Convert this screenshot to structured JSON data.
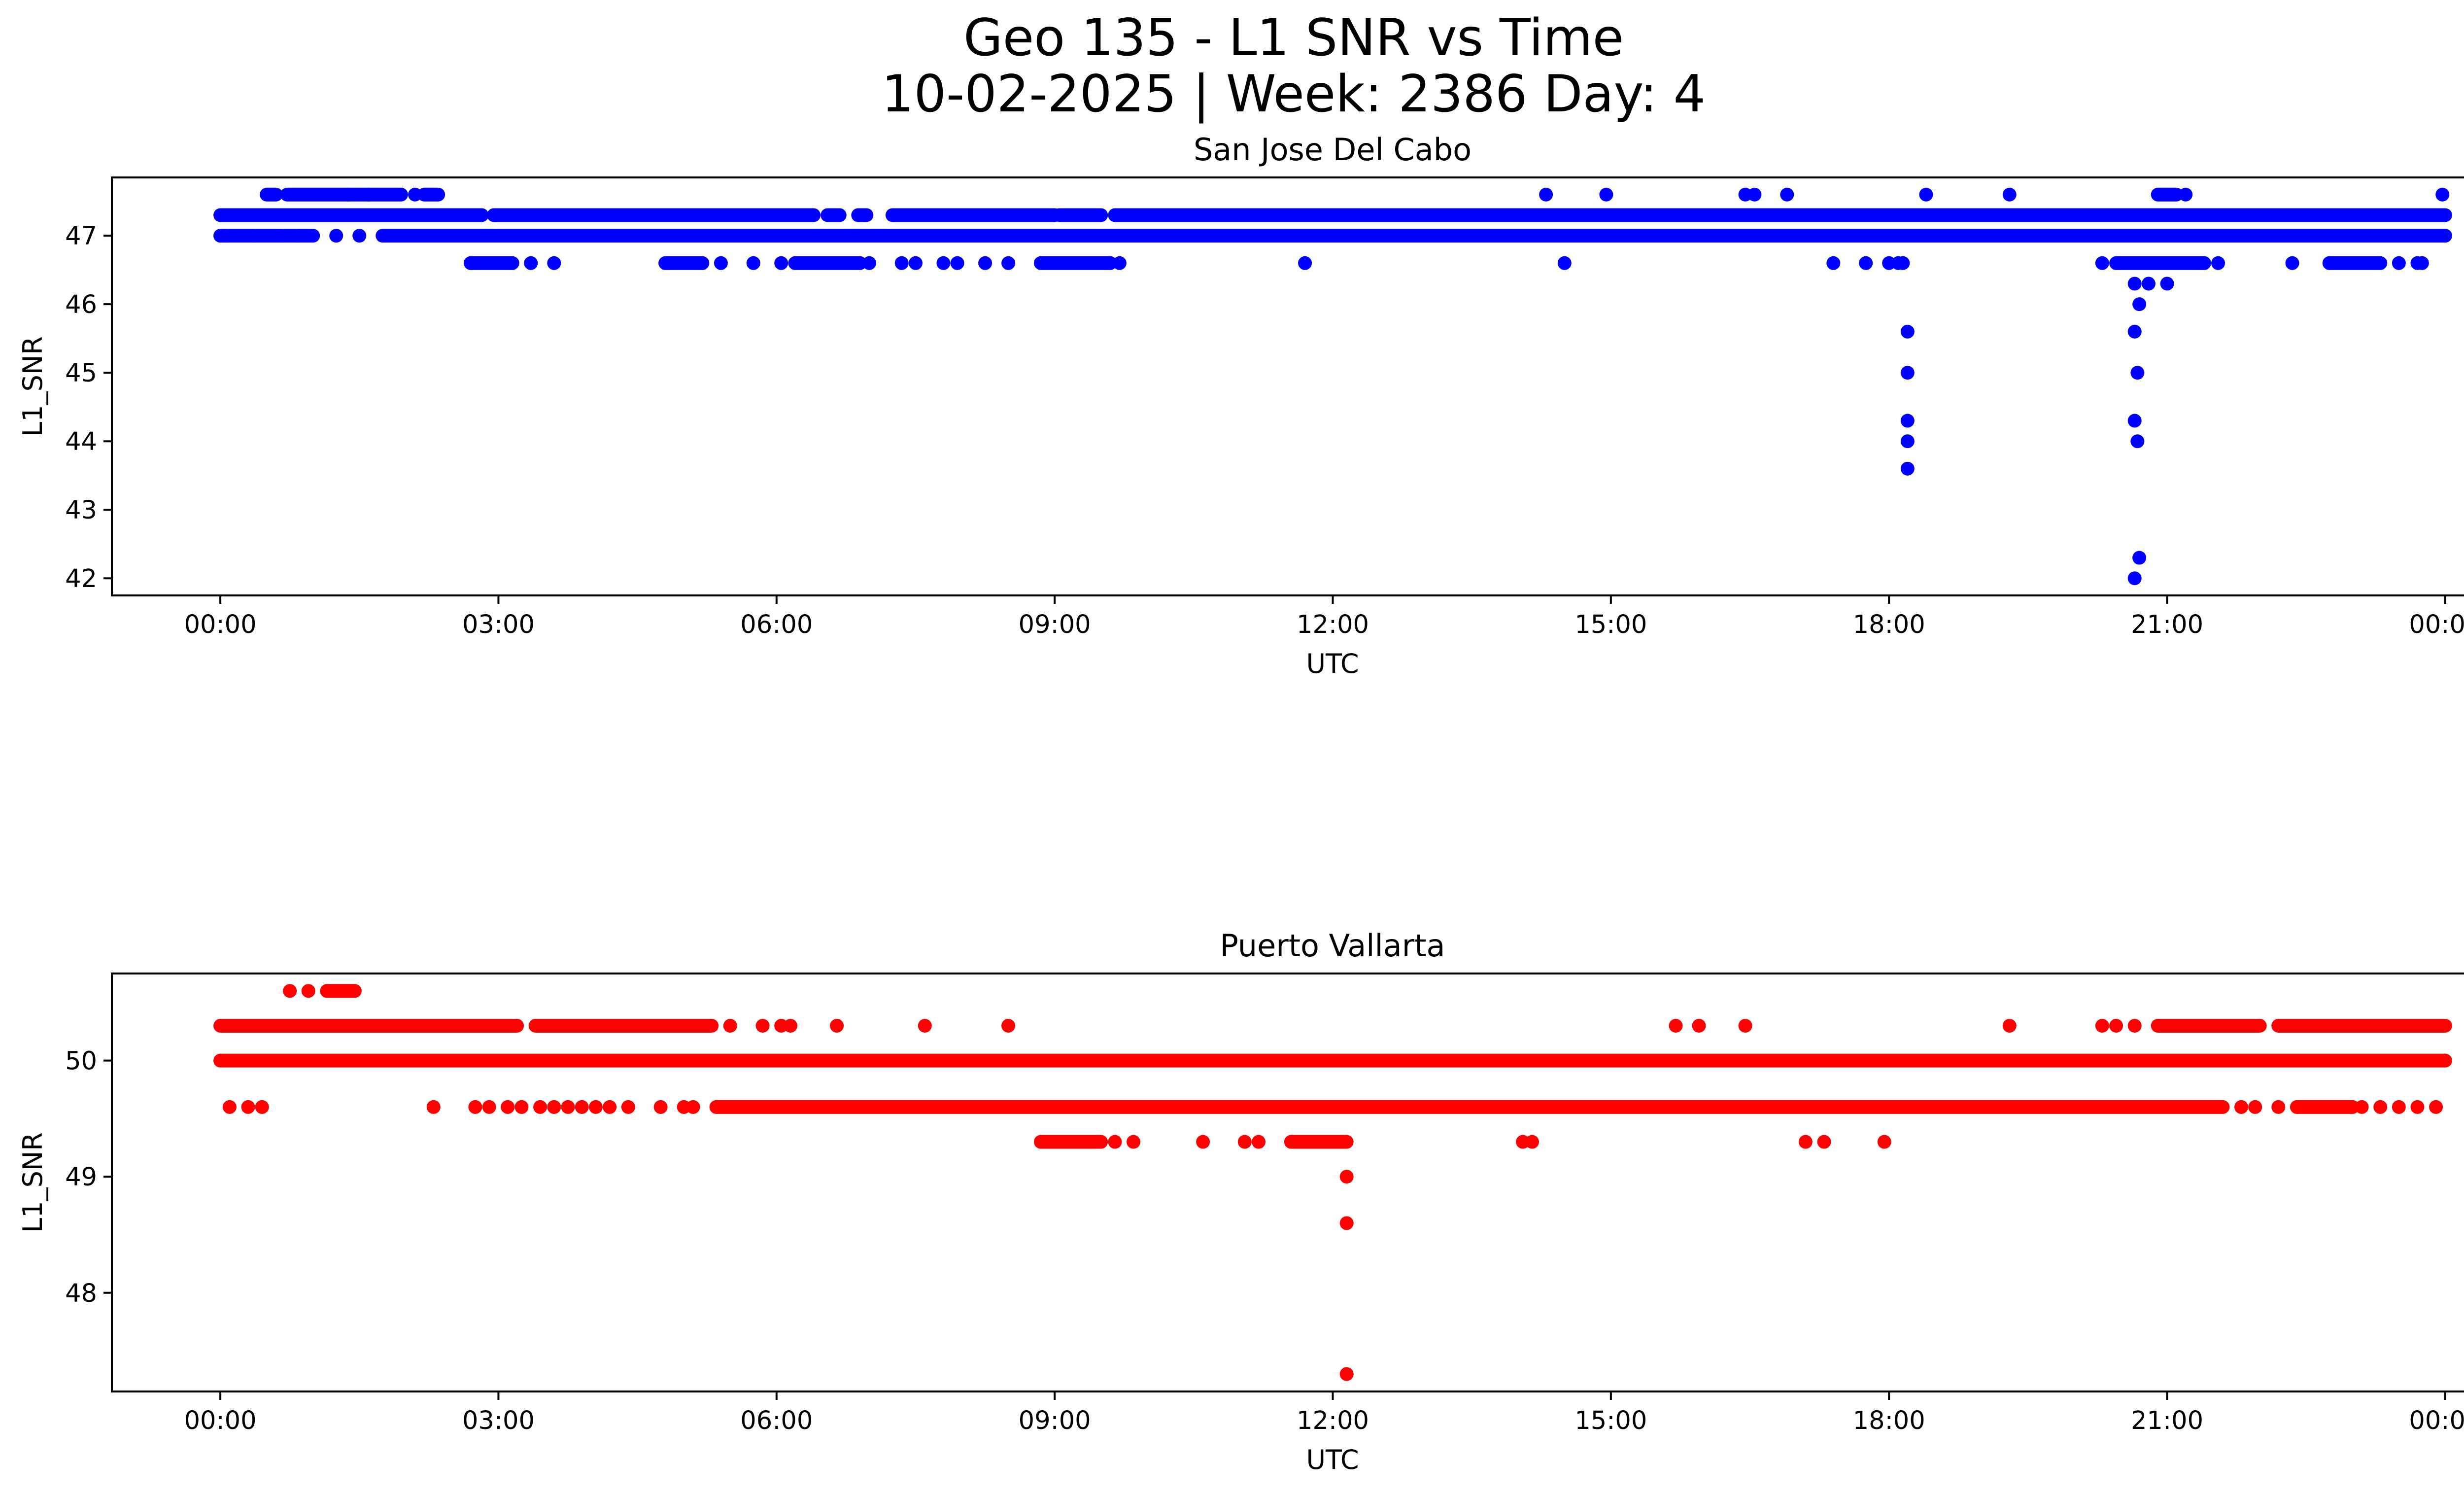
{
  "figure": {
    "title_line1": "Geo 135 - L1 SNR vs Time",
    "title_line2": "10-02-2025 | Week: 2386 Day: 4"
  },
  "chart_data": [
    {
      "type": "scatter",
      "title": "San Jose Del Cabo",
      "xlabel": "UTC",
      "ylabel": "L1_SNR",
      "color": "#0000ff",
      "xlim_hours": [
        -1.17,
        25.17
      ],
      "ylim": [
        41.75,
        47.85
      ],
      "xticks": [
        {
          "value": 0,
          "label": "00:00"
        },
        {
          "value": 3,
          "label": "03:00"
        },
        {
          "value": 6,
          "label": "06:00"
        },
        {
          "value": 9,
          "label": "09:00"
        },
        {
          "value": 12,
          "label": "12:00"
        },
        {
          "value": 15,
          "label": "15:00"
        },
        {
          "value": 18,
          "label": "18:00"
        },
        {
          "value": 21,
          "label": "21:00"
        },
        {
          "value": 24,
          "label": "00:00"
        }
      ],
      "yticks": [
        {
          "value": 42,
          "label": "42"
        },
        {
          "value": 43,
          "label": "43"
        },
        {
          "value": 44,
          "label": "44"
        },
        {
          "value": 45,
          "label": "45"
        },
        {
          "value": 46,
          "label": "46"
        },
        {
          "value": 47,
          "label": "47"
        }
      ],
      "runs": [
        {
          "y": 47.3,
          "segments": [
            [
              0,
              2.82
            ],
            [
              2.95,
              6.4
            ],
            [
              6.55,
              6.68
            ],
            [
              6.88,
              6.97
            ],
            [
              7.25,
              9.0
            ],
            [
              9.05,
              9.5
            ],
            [
              9.65,
              24.0
            ]
          ]
        },
        {
          "y": 47.0,
          "segments": [
            [
              0,
              1.0
            ],
            [
              1.75,
              24.0
            ]
          ]
        },
        {
          "y": 47.6,
          "segments": [
            [
              0.5,
              0.6
            ],
            [
              0.72,
              1.95
            ],
            [
              2.2,
              2.35
            ],
            [
              20.9,
              21.1
            ]
          ]
        },
        {
          "y": 46.6,
          "segments": [
            [
              2.7,
              3.15
            ],
            [
              4.8,
              5.2
            ],
            [
              6.2,
              6.9
            ],
            [
              8.85,
              9.6
            ],
            [
              20.45,
              21.4
            ],
            [
              22.75,
              23.3
            ]
          ]
        }
      ],
      "points": [
        [
          0.05,
          47.0
        ],
        [
          0.35,
          47.0
        ],
        [
          0.65,
          47.0
        ],
        [
          0.85,
          47.0
        ],
        [
          1.25,
          47.0
        ],
        [
          1.5,
          47.0
        ],
        [
          1.38,
          47.6
        ],
        [
          1.6,
          47.6
        ],
        [
          2.1,
          47.6
        ],
        [
          14.3,
          47.6
        ],
        [
          14.95,
          47.6
        ],
        [
          16.45,
          47.6
        ],
        [
          16.55,
          47.6
        ],
        [
          16.9,
          47.6
        ],
        [
          18.4,
          47.6
        ],
        [
          19.3,
          47.6
        ],
        [
          21.2,
          47.6
        ],
        [
          23.97,
          47.6
        ],
        [
          3.35,
          46.6
        ],
        [
          3.6,
          46.6
        ],
        [
          5.4,
          46.6
        ],
        [
          5.75,
          46.6
        ],
        [
          6.05,
          46.6
        ],
        [
          7.0,
          46.6
        ],
        [
          7.35,
          46.6
        ],
        [
          7.5,
          46.6
        ],
        [
          7.8,
          46.6
        ],
        [
          7.95,
          46.6
        ],
        [
          8.25,
          46.6
        ],
        [
          8.5,
          46.6
        ],
        [
          9.7,
          46.6
        ],
        [
          11.7,
          46.6
        ],
        [
          14.5,
          46.6
        ],
        [
          17.4,
          46.6
        ],
        [
          17.75,
          46.6
        ],
        [
          18.0,
          46.6
        ],
        [
          18.1,
          46.6
        ],
        [
          18.15,
          46.6
        ],
        [
          20.3,
          46.6
        ],
        [
          21.55,
          46.6
        ],
        [
          22.35,
          46.6
        ],
        [
          23.5,
          46.6
        ],
        [
          23.7,
          46.6
        ],
        [
          23.75,
          46.6
        ],
        [
          18.2,
          45.6
        ],
        [
          18.2,
          45.0
        ],
        [
          18.2,
          44.3
        ],
        [
          18.2,
          44.0
        ],
        [
          18.2,
          43.6
        ],
        [
          20.65,
          46.3
        ],
        [
          20.8,
          46.3
        ],
        [
          21.0,
          46.3
        ],
        [
          20.7,
          46.0
        ],
        [
          20.65,
          45.6
        ],
        [
          20.68,
          45.0
        ],
        [
          20.65,
          44.3
        ],
        [
          20.68,
          44.0
        ],
        [
          20.7,
          42.3
        ],
        [
          20.65,
          42.0
        ]
      ]
    },
    {
      "type": "scatter",
      "title": "Puerto Vallarta",
      "xlabel": "UTC",
      "ylabel": "L1_SNR",
      "color": "#ff0000",
      "xlim_hours": [
        -1.17,
        25.17
      ],
      "ylim": [
        47.15,
        50.75
      ],
      "xticks": [
        {
          "value": 0,
          "label": "00:00"
        },
        {
          "value": 3,
          "label": "03:00"
        },
        {
          "value": 6,
          "label": "06:00"
        },
        {
          "value": 9,
          "label": "09:00"
        },
        {
          "value": 12,
          "label": "12:00"
        },
        {
          "value": 15,
          "label": "15:00"
        },
        {
          "value": 18,
          "label": "18:00"
        },
        {
          "value": 21,
          "label": "21:00"
        },
        {
          "value": 24,
          "label": "00:00"
        }
      ],
      "yticks": [
        {
          "value": 48,
          "label": "48"
        },
        {
          "value": 49,
          "label": "49"
        },
        {
          "value": 50,
          "label": "50"
        }
      ],
      "runs": [
        {
          "y": 50.0,
          "segments": [
            [
              0,
              24.0
            ]
          ]
        },
        {
          "y": 50.3,
          "segments": [
            [
              0,
              3.2
            ],
            [
              3.4,
              5.3
            ],
            [
              20.9,
              22.0
            ],
            [
              22.2,
              24.0
            ]
          ]
        },
        {
          "y": 50.6,
          "segments": [
            [
              1.15,
              1.45
            ]
          ]
        },
        {
          "y": 49.6,
          "segments": [
            [
              5.35,
              21.6
            ],
            [
              22.4,
              23.0
            ]
          ]
        },
        {
          "y": 49.3,
          "segments": [
            [
              8.85,
              9.5
            ],
            [
              11.55,
              12.15
            ]
          ]
        }
      ],
      "points": [
        [
          0.1,
          49.6
        ],
        [
          0.3,
          49.6
        ],
        [
          0.45,
          49.6
        ],
        [
          2.3,
          49.6
        ],
        [
          2.75,
          49.6
        ],
        [
          2.9,
          49.6
        ],
        [
          3.1,
          49.6
        ],
        [
          3.25,
          49.6
        ],
        [
          3.45,
          49.6
        ],
        [
          3.6,
          49.6
        ],
        [
          3.75,
          49.6
        ],
        [
          3.9,
          49.6
        ],
        [
          4.05,
          49.6
        ],
        [
          4.2,
          49.6
        ],
        [
          4.4,
          49.6
        ],
        [
          4.75,
          49.6
        ],
        [
          5.0,
          49.6
        ],
        [
          5.1,
          49.6
        ],
        [
          21.8,
          49.6
        ],
        [
          21.95,
          49.6
        ],
        [
          22.2,
          49.6
        ],
        [
          23.1,
          49.6
        ],
        [
          23.3,
          49.6
        ],
        [
          23.5,
          49.6
        ],
        [
          23.7,
          49.6
        ],
        [
          23.9,
          49.6
        ],
        [
          0.75,
          50.6
        ],
        [
          0.95,
          50.6
        ],
        [
          5.5,
          50.3
        ],
        [
          5.85,
          50.3
        ],
        [
          6.05,
          50.3
        ],
        [
          6.15,
          50.3
        ],
        [
          6.65,
          50.3
        ],
        [
          7.6,
          50.3
        ],
        [
          8.5,
          50.3
        ],
        [
          15.7,
          50.3
        ],
        [
          15.95,
          50.3
        ],
        [
          16.45,
          50.3
        ],
        [
          19.3,
          50.3
        ],
        [
          20.3,
          50.3
        ],
        [
          20.45,
          50.3
        ],
        [
          20.65,
          50.3
        ],
        [
          9.65,
          49.3
        ],
        [
          9.85,
          49.3
        ],
        [
          10.6,
          49.3
        ],
        [
          11.05,
          49.3
        ],
        [
          11.2,
          49.3
        ],
        [
          14.05,
          49.3
        ],
        [
          14.15,
          49.3
        ],
        [
          17.1,
          49.3
        ],
        [
          17.3,
          49.3
        ],
        [
          17.95,
          49.3
        ],
        [
          12.15,
          49.0
        ],
        [
          12.15,
          48.6
        ],
        [
          12.15,
          47.3
        ]
      ]
    }
  ]
}
